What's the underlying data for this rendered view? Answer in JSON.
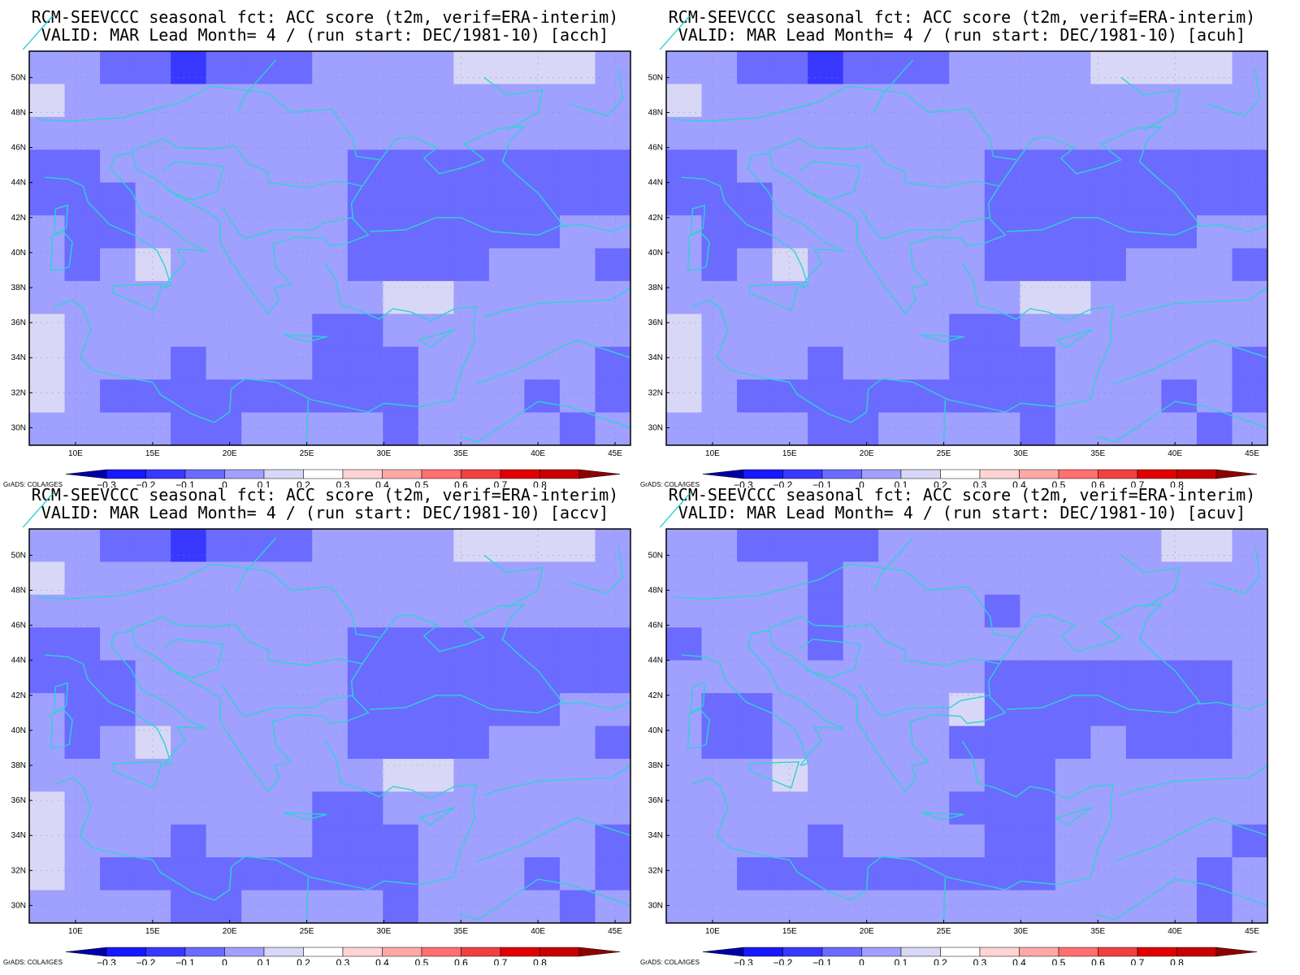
{
  "figure": {
    "credit": "GrADS: COLA/IGES",
    "colors": {
      "coast": "#2fd2d2",
      "grid": "#8a8aa0",
      "frame": "#000000"
    },
    "lon_labels": [
      "10E",
      "15E",
      "20E",
      "25E",
      "30E",
      "35E",
      "40E",
      "45E"
    ],
    "lat_labels": [
      "30N",
      "32N",
      "34N",
      "36N",
      "38N",
      "40N",
      "42N",
      "44N",
      "46N",
      "48N",
      "50N"
    ],
    "colorbar": {
      "labels": [
        "-0.3",
        "-0.2",
        "-0.1",
        "0",
        "0.1",
        "0.2",
        "0.3",
        "0.4",
        "0.5",
        "0.6",
        "0.7",
        "0.8"
      ],
      "colors": [
        "#0000a8",
        "#1818ff",
        "#3838ff",
        "#6b6bff",
        "#a0a0ff",
        "#d8d8f6",
        "#ffffff",
        "#ffd4d4",
        "#ffa8a8",
        "#ff7070",
        "#f04040",
        "#e00000",
        "#c80000",
        "#900000"
      ]
    },
    "panels": [
      {
        "title1": "RCM-SEEVCCC seasonal fct: ACC score (t2m, verif=ERA-interim)",
        "title2": "VALID: MAR Lead Month= 4 / (run start: DEC/1981-10) [acch]"
      },
      {
        "title1": "RCM-SEEVCCC seasonal fct: ACC score (t2m, verif=ERA-interim)",
        "title2": "VALID: MAR Lead Month= 4 / (run start: DEC/1981-10) [acuh]"
      },
      {
        "title1": "RCM-SEEVCCC seasonal fct: ACC score (t2m, verif=ERA-interim)",
        "title2": "VALID: MAR Lead Month= 4 / (run start: DEC/1981-10) [accv]"
      },
      {
        "title1": "RCM-SEEVCCC seasonal fct: ACC score (t2m, verif=ERA-interim)",
        "title2": "VALID: MAR Lead Month= 4 / (run start: DEC/1981-10) [acuv]"
      }
    ]
  }
}
